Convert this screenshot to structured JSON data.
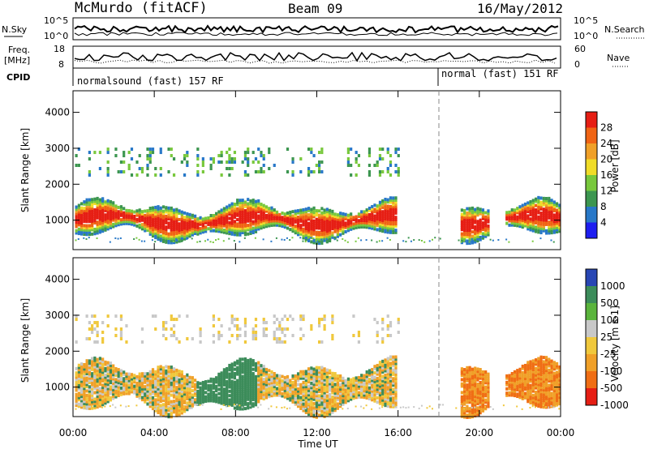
{
  "header": {
    "station": "McMurdo (fitACF)",
    "beam": "Beam 09",
    "date": "16/May/2012"
  },
  "status_panel": {
    "nsky_label": "N.Sky",
    "nsearch_label": "N.Search",
    "freq_label_1": "Freq.",
    "freq_label_2": "[MHz]",
    "nave_label": "Nave",
    "cpid_label": "CPID",
    "left_ticks_top": [
      "10^5",
      "10^0"
    ],
    "right_ticks_top": [
      "10^5",
      "10^0"
    ],
    "left_ticks_freq": [
      "18",
      "8"
    ],
    "right_ticks_nave": [
      "60",
      "0"
    ],
    "cpid_1": "normalsound (fast) 157 RF",
    "cpid_2": "normal (fast) 151 RF"
  },
  "chart_data": [
    {
      "type": "heatmap",
      "title": "",
      "xlabel": "Time UT",
      "ylabel": "Slant Range [km]",
      "xlim": [
        0,
        24
      ],
      "ylim": [
        180,
        4600
      ],
      "x_ticks": [
        "00:00",
        "04:00",
        "08:00",
        "12:00",
        "16:00",
        "20:00",
        "00:00"
      ],
      "y_ticks": [
        "1000",
        "2000",
        "3000",
        "4000"
      ],
      "colorbar": {
        "label": "Power [dB]",
        "ticks": [
          "4",
          "8",
          "12",
          "16",
          "20",
          "24",
          "28"
        ],
        "colors": [
          "#1e1ef0",
          "#2878c8",
          "#3c9650",
          "#78c83c",
          "#f0dc28",
          "#f0a028",
          "#f06414",
          "#e61e14"
        ]
      },
      "mode_change_hour": 18.0,
      "main_band_km": [
        600,
        1600
      ],
      "secondary_band_km": [
        2300,
        3100
      ]
    },
    {
      "type": "heatmap",
      "title": "",
      "xlabel": "Time UT",
      "ylabel": "Slant Range [km]",
      "xlim": [
        0,
        24
      ],
      "ylim": [
        180,
        4600
      ],
      "x_ticks": [
        "00:00",
        "04:00",
        "08:00",
        "12:00",
        "16:00",
        "20:00",
        "00:00"
      ],
      "y_ticks": [
        "1000",
        "2000",
        "3000",
        "4000"
      ],
      "colorbar": {
        "label": "Velocity [m s-1]",
        "ticks": [
          "1000",
          "500",
          "100",
          "25",
          "-25",
          "-100",
          "-500",
          "-1000"
        ],
        "colors": [
          "#2846b4",
          "#3c8c5a",
          "#5ab43c",
          "#c8c8c8",
          "#f0c83c",
          "#f0a028",
          "#f06e14",
          "#e61e14"
        ]
      },
      "mode_change_hour": 18.0,
      "main_band_km": [
        600,
        2000
      ],
      "secondary_band_km": [
        2300,
        3100
      ]
    }
  ],
  "colors": {
    "axis": "#000000",
    "background": "#ffffff"
  }
}
